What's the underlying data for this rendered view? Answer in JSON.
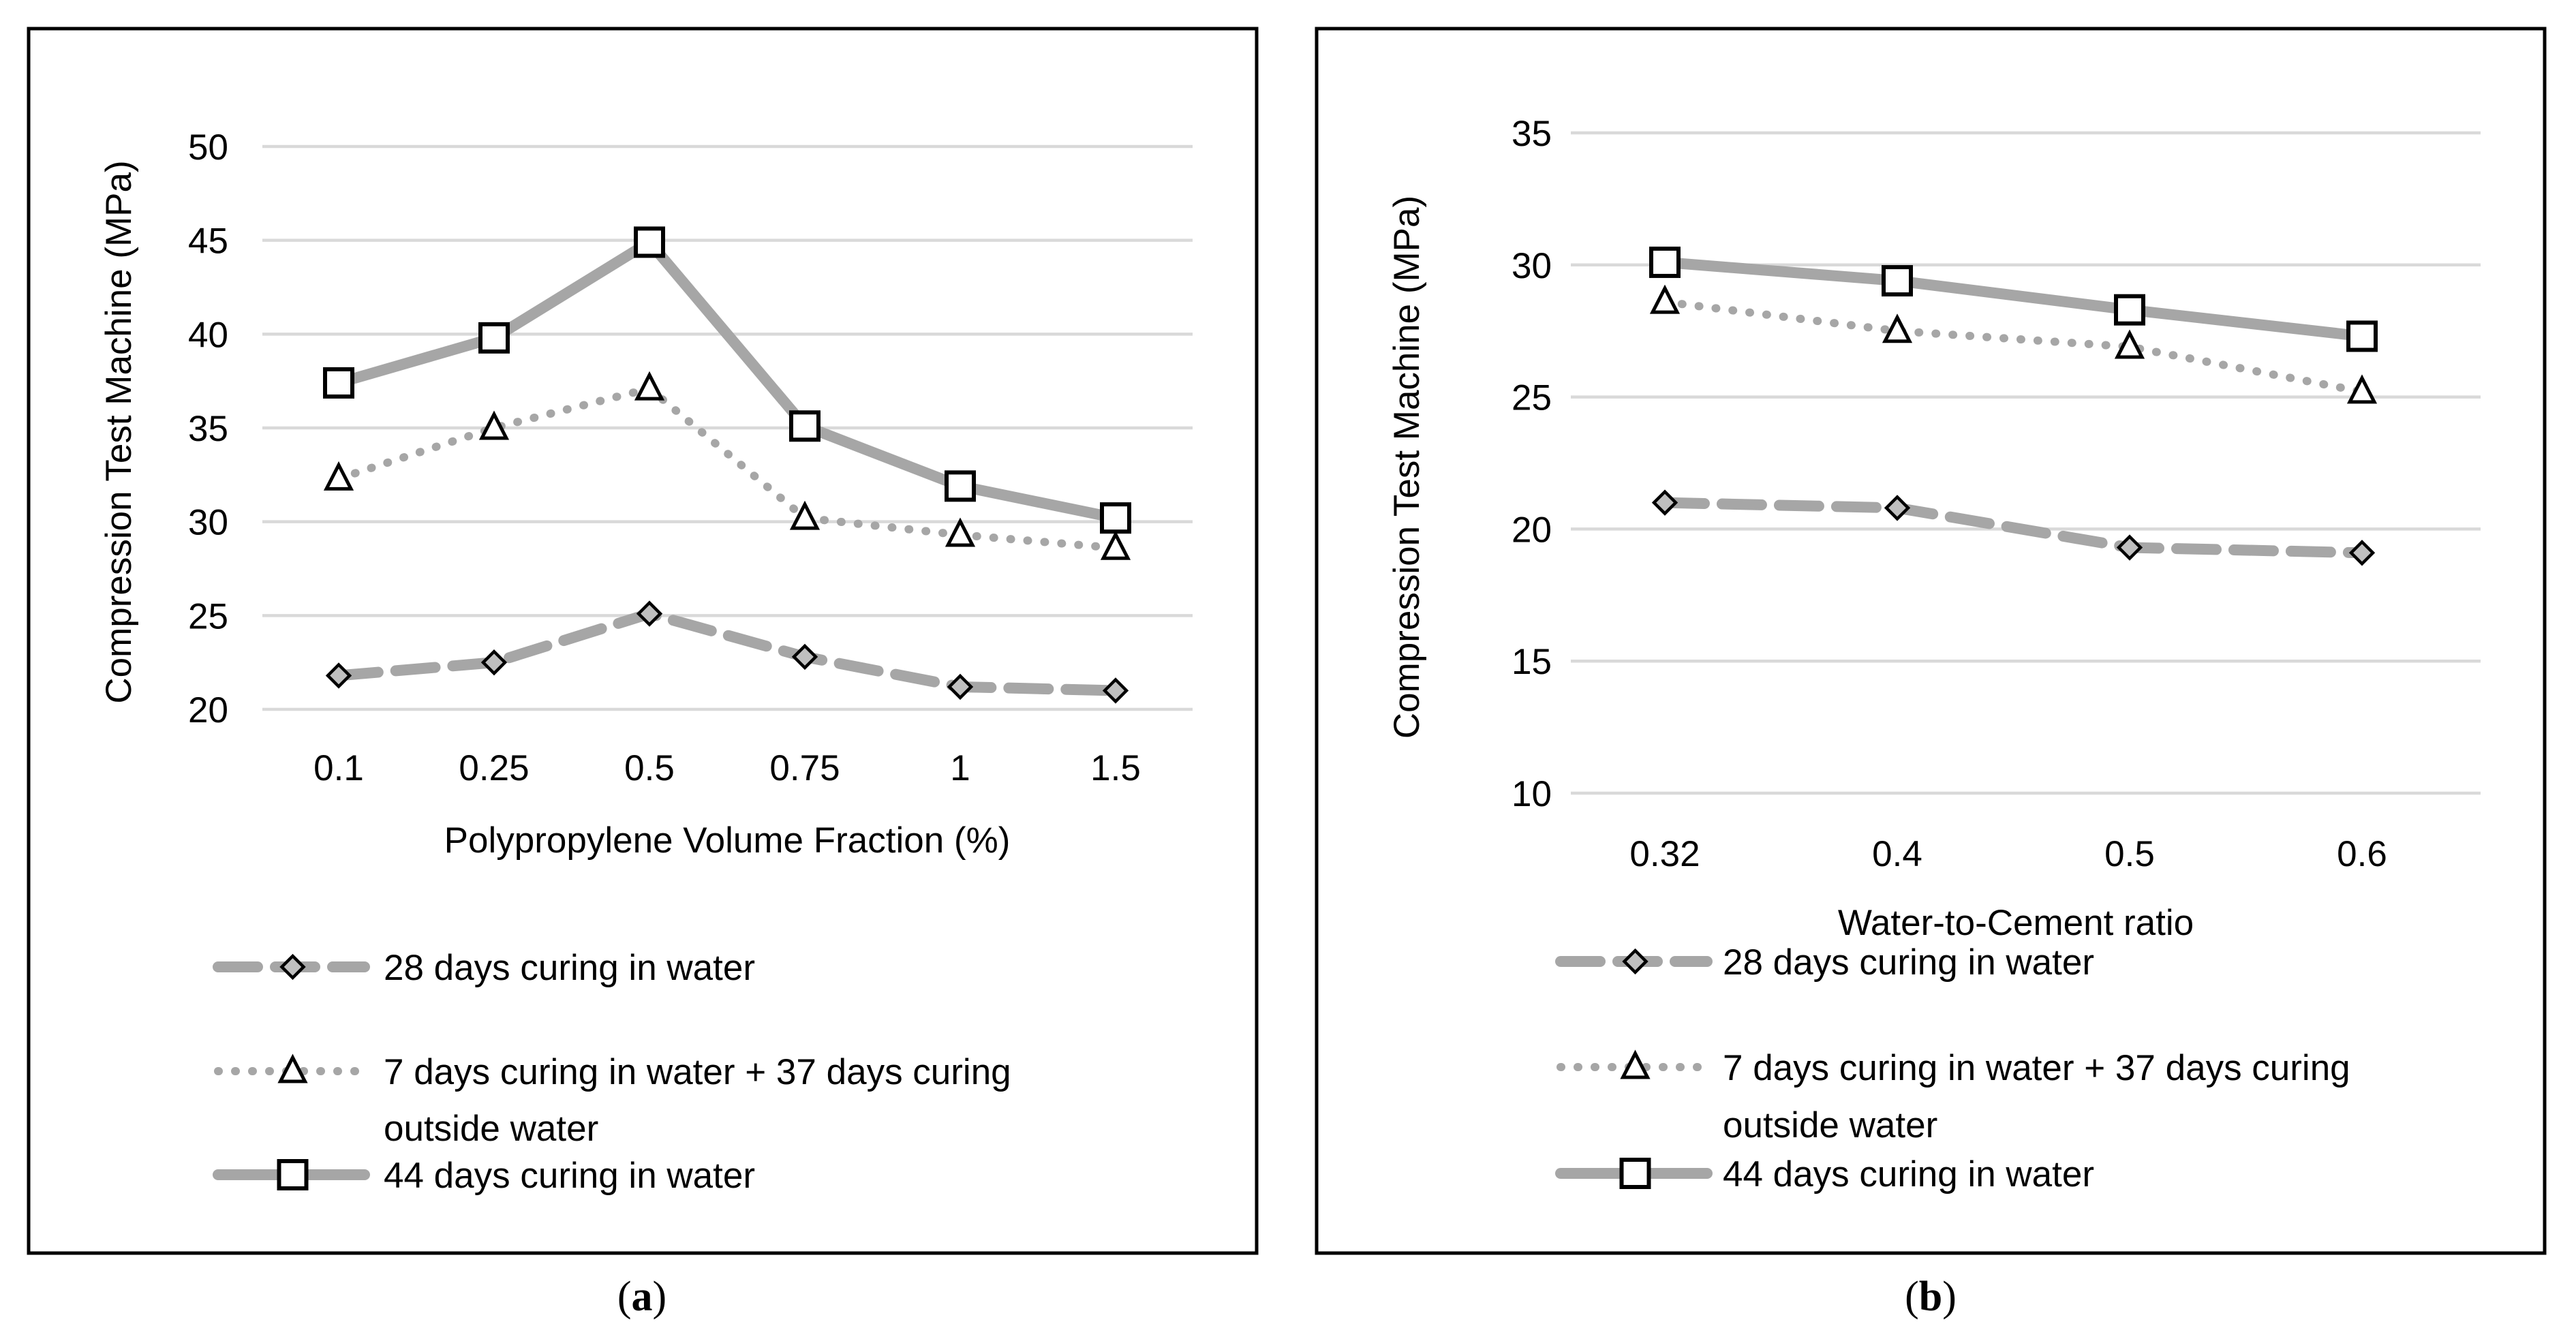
{
  "chart_data": [
    {
      "id": "a",
      "type": "line",
      "caption_letter": "a",
      "title": "",
      "xlabel": "Polypropylene Volume Fraction (%)",
      "ylabel": "Compression Test Machine (MPa)",
      "categories": [
        "0.1",
        "0.25",
        "0.5",
        "0.75",
        "1",
        "1.5"
      ],
      "ylim": [
        20,
        50
      ],
      "yticks": [
        20,
        25,
        30,
        35,
        40,
        45,
        50
      ],
      "grid": true,
      "legend_position": "bottom",
      "series": [
        {
          "name": "28 days curing in water",
          "marker": "diamond",
          "style": "dashed",
          "values": [
            21.8,
            22.5,
            25.1,
            22.8,
            21.2,
            21.0
          ]
        },
        {
          "name": "7 days curing in water + 37 days curing outside water",
          "name_lines": [
            "7 days curing in water + 37 days curing",
            "outside water"
          ],
          "marker": "triangle",
          "style": "dotted",
          "values": [
            32.3,
            35.0,
            37.1,
            30.2,
            29.3,
            28.6
          ]
        },
        {
          "name": "44 days curing in water",
          "marker": "square",
          "style": "solid",
          "values": [
            37.4,
            39.8,
            44.9,
            35.1,
            31.9,
            30.2
          ]
        }
      ]
    },
    {
      "id": "b",
      "type": "line",
      "caption_letter": "b",
      "title": "",
      "xlabel": "Water-to-Cement ratio",
      "ylabel": "Compression Test Machine (MPa)",
      "categories": [
        "0.32",
        "0.4",
        "0.5",
        "0.6"
      ],
      "ylim": [
        10,
        35
      ],
      "yticks": [
        10,
        15,
        20,
        25,
        30,
        35
      ],
      "grid": true,
      "legend_position": "bottom",
      "series": [
        {
          "name": "28 days curing in water",
          "marker": "diamond",
          "style": "dashed",
          "values": [
            21.0,
            20.8,
            19.3,
            19.1
          ]
        },
        {
          "name": "7 days curing in water + 37 days curing outside water",
          "name_lines": [
            "7 days curing in water + 37 days curing",
            "outside water"
          ],
          "marker": "triangle",
          "style": "dotted",
          "values": [
            28.6,
            27.5,
            26.9,
            25.2
          ]
        },
        {
          "name": "44 days curing in water",
          "marker": "square",
          "style": "solid",
          "values": [
            30.1,
            29.4,
            28.3,
            27.3
          ]
        }
      ]
    }
  ]
}
